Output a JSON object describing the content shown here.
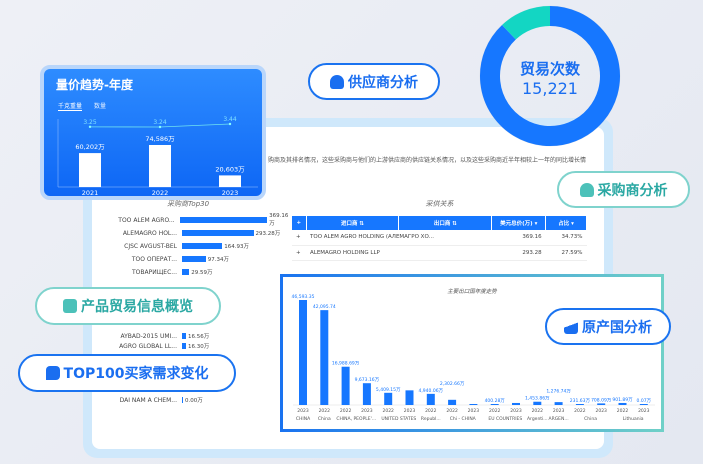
{
  "dashboard": {
    "description": "购商及其排名情况，这些采购商与他们的上游供应商的供应链关系情况，以及这些采购商近半年相较上一年的同比增长情"
  },
  "trend_card": {
    "title": "量价趋势-年度",
    "tabs": [
      "千克重量",
      "数量"
    ],
    "chart_data": {
      "type": "bar",
      "categories": [
        "2021",
        "2022",
        "2023"
      ],
      "values": [
        60202,
        74586,
        20603
      ],
      "value_labels": [
        "60,202万",
        "74,586万",
        "20,603万"
      ],
      "line": [
        3.25,
        3.24,
        3.44
      ],
      "line_labels": [
        "3.25",
        "3.24",
        "3.44"
      ]
    }
  },
  "donut": {
    "label": "贸易次数",
    "value": "15,221",
    "chart_data": {
      "type": "pie",
      "values": [
        88,
        12
      ],
      "colors": [
        "#1677ff",
        "#13d6c3"
      ]
    }
  },
  "pills": {
    "supplier": "供应商分析",
    "buyer": "采购商分析",
    "product": "产品贸易信息概览",
    "top100": "TOP100买家需求变化",
    "origin": "原产国分析"
  },
  "top30": {
    "title": "采购商Top30",
    "chart_data": {
      "type": "bar",
      "orientation": "horizontal",
      "items": [
        {
          "name": "TOO ALEM AGRO...",
          "value": 369.16,
          "label": "369.16万"
        },
        {
          "name": "ALEMAGRO HOL...",
          "value": 293.28,
          "label": "293.28万"
        },
        {
          "name": "CJSC AVGUST-BEL",
          "value": 164.93,
          "label": "164.93万"
        },
        {
          "name": "TOO ОПЕРАТ...",
          "value": 97.34,
          "label": "97.34万"
        },
        {
          "name": "ТОВАРИЩЕС...",
          "value": 29.59,
          "label": "29.59万"
        },
        {
          "name": "AYBAD-2015 UMI...",
          "value": 16.56,
          "label": "16.56万"
        },
        {
          "name": "AGRO GLOBAL LL...",
          "value": 16.3,
          "label": "16.30万"
        },
        {
          "name": "DAI NAM A CHEM...",
          "value": 0.0,
          "label": "0.00万"
        }
      ]
    }
  },
  "relation": {
    "title": "采供关系",
    "columns": [
      "进口商",
      "出口商",
      "美元总价(万)",
      "占比"
    ],
    "rows": [
      [
        "TOO ALEM AGRO HOLDING (АЛЕМАГРО ХО...",
        "",
        "369.16",
        "34.73%"
      ],
      [
        "ALEMAGRO HOLDING LLP",
        "",
        "293.28",
        "27.59%"
      ]
    ]
  },
  "export_chart": {
    "title": "主要出口国年度走势",
    "chart_data": {
      "type": "bar",
      "bars": [
        {
          "year": "2023",
          "country": "CHINA",
          "value": 46593.35,
          "label": "46,593.35"
        },
        {
          "year": "2022",
          "country": "China",
          "value": 42095.74,
          "label": "42,095.74"
        },
        {
          "year": "2022",
          "country": "CHINA, PEOPLE'...",
          "value": 16988.69,
          "label": "16,988.69万"
        },
        {
          "year": "2023",
          "country": "",
          "value": 9673.16,
          "label": "9,673.16万"
        },
        {
          "year": "2022",
          "country": "UNITED STATES",
          "value": 5409.15,
          "label": "5,409.15万"
        },
        {
          "year": "2023",
          "country": "",
          "value": 6500,
          "label": ""
        },
        {
          "year": "2022",
          "country": "Republ...",
          "value": 4940.06,
          "label": "4,940.06万"
        },
        {
          "year": "2022",
          "country": "Chi - CHINA",
          "value": 2302.66,
          "label": "2,302.66万"
        },
        {
          "year": "2023",
          "country": "",
          "value": 80,
          "label": ""
        },
        {
          "year": "2022",
          "country": "EU COUNTRIES",
          "value": 400.28,
          "label": "400.28万"
        },
        {
          "year": "2023",
          "country": "",
          "value": 900,
          "label": ""
        },
        {
          "year": "2022",
          "country": "Argenti...",
          "value": 1453.86,
          "label": "1,453.86万"
        },
        {
          "year": "2023",
          "country": "ARGEN...",
          "value": 1276.74,
          "label": "1,276.74万"
        },
        {
          "year": "2022",
          "country": "China",
          "value": 231.63,
          "label": "231.63万"
        },
        {
          "year": "2023",
          "country": "",
          "value": 708.09,
          "label": "708.09万"
        },
        {
          "year": "2022",
          "country": "Lithuania",
          "value": 901.89,
          "label": "901.89万"
        },
        {
          "year": "2023",
          "country": "",
          "value": 0.07,
          "label": "0.07万"
        }
      ]
    }
  }
}
